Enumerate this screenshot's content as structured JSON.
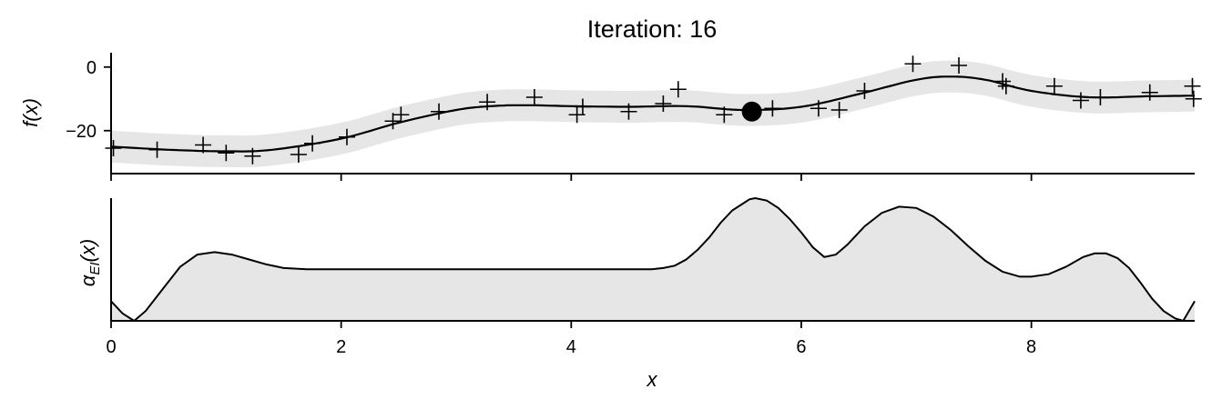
{
  "chart_data": [
    {
      "type": "line",
      "title": "Iteration: 16",
      "ylabel": "f(x)",
      "xlim": [
        0,
        9.42
      ],
      "ylim": [
        -33.5,
        4.5
      ],
      "yticks": [
        0,
        -20
      ],
      "xticks": [
        0,
        2,
        4,
        6,
        8
      ],
      "xtick_labels_visible": false,
      "grid": false,
      "colors": {
        "mean": "#000000",
        "band": "#e6e6e6",
        "points": "#000000"
      },
      "band_halfwidth": 5,
      "mean": {
        "x": [
          0,
          0.5,
          1.0,
          1.4,
          2.0,
          2.5,
          3.0,
          3.3,
          3.6,
          4.0,
          4.5,
          5.0,
          5.5,
          6.0,
          6.5,
          7.0,
          7.3,
          7.6,
          8.0,
          8.5,
          9.0,
          9.42
        ],
        "y": [
          -25,
          -26,
          -26.5,
          -26,
          -22.5,
          -17.5,
          -13.5,
          -12.3,
          -12,
          -12.3,
          -12.5,
          -12.3,
          -13.5,
          -12.5,
          -8.5,
          -4,
          -3,
          -4,
          -7.5,
          -9.5,
          -9.2,
          -9
        ]
      },
      "observations": {
        "x": [
          0.02,
          0.4,
          0.8,
          1.0,
          1.23,
          1.63,
          1.75,
          2.05,
          2.45,
          2.52,
          2.85,
          3.27,
          3.68,
          4.05,
          4.1,
          4.5,
          4.8,
          4.93,
          5.33,
          5.75,
          6.15,
          6.33,
          6.55,
          6.97,
          7.37,
          7.75,
          7.78,
          8.2,
          8.43,
          8.6,
          9.03,
          9.4,
          9.41
        ],
        "y": [
          -25.5,
          -26,
          -24.5,
          -27,
          -28,
          -27.5,
          -24,
          -22,
          -17,
          -15,
          -14,
          -11,
          -9.5,
          -15,
          -12.5,
          -14,
          -11.5,
          -7,
          -15,
          -13,
          -13,
          -13.5,
          -7.5,
          1,
          0.5,
          -4.5,
          -6,
          -6,
          -10.5,
          -9.5,
          -8,
          -6,
          -10
        ]
      },
      "next_query": {
        "x": 5.57,
        "y": -14
      }
    },
    {
      "type": "area",
      "xlabel": "x",
      "ylabel": "α_EI(x)",
      "ylabel_parts": {
        "base": "α",
        "sub": "EI",
        "rest": "(x)"
      },
      "xlim": [
        0,
        9.42
      ],
      "ylim": [
        0,
        1
      ],
      "xticks": [
        0,
        2,
        4,
        6,
        8
      ],
      "xtick_labels": [
        "0",
        "2",
        "4",
        "6",
        "8"
      ],
      "grid": false,
      "colors": {
        "line": "#000000",
        "fill": "#e6e6e6"
      },
      "x": [
        0,
        0.1,
        0.2,
        0.3,
        0.45,
        0.6,
        0.75,
        0.9,
        1.05,
        1.2,
        1.35,
        1.5,
        1.7,
        2.0,
        2.5,
        3.0,
        3.5,
        4.0,
        4.5,
        4.7,
        4.8,
        4.9,
        5.0,
        5.1,
        5.2,
        5.3,
        5.4,
        5.5,
        5.55,
        5.6,
        5.7,
        5.8,
        5.9,
        6.0,
        6.1,
        6.2,
        6.3,
        6.4,
        6.55,
        6.7,
        6.85,
        7.0,
        7.15,
        7.3,
        7.45,
        7.6,
        7.75,
        7.9,
        8.0,
        8.15,
        8.3,
        8.45,
        8.55,
        8.65,
        8.75,
        8.85,
        8.95,
        9.05,
        9.15,
        9.25,
        9.32,
        9.42
      ],
      "y": [
        0.16,
        0.06,
        0.0,
        0.08,
        0.26,
        0.44,
        0.54,
        0.56,
        0.54,
        0.5,
        0.46,
        0.43,
        0.42,
        0.42,
        0.42,
        0.42,
        0.42,
        0.42,
        0.42,
        0.42,
        0.43,
        0.45,
        0.5,
        0.58,
        0.68,
        0.8,
        0.9,
        0.96,
        0.99,
        1.0,
        0.98,
        0.92,
        0.83,
        0.72,
        0.6,
        0.52,
        0.54,
        0.62,
        0.77,
        0.88,
        0.93,
        0.92,
        0.85,
        0.74,
        0.61,
        0.49,
        0.4,
        0.36,
        0.36,
        0.38,
        0.44,
        0.52,
        0.55,
        0.55,
        0.51,
        0.43,
        0.31,
        0.18,
        0.08,
        0.02,
        0.0,
        0.16
      ]
    }
  ]
}
